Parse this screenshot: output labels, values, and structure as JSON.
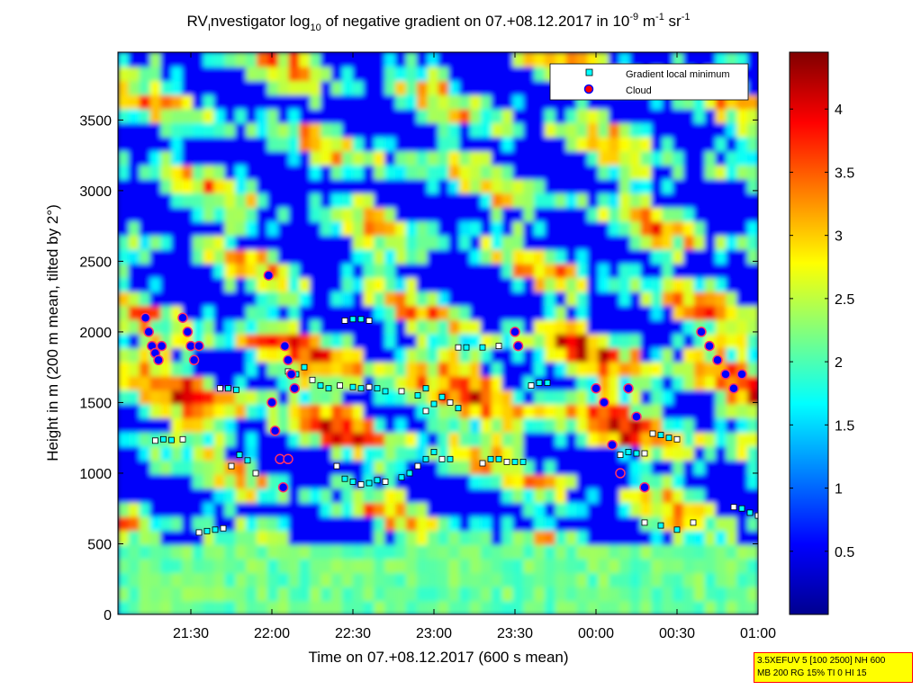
{
  "chart_data": {
    "type": "heatmap",
    "title": {
      "main": "RV",
      "main_sub": "I",
      "part1": "nvestigator log",
      "part1_sub": "10",
      "part2": " of negative gradient on 07.+08.12.2017 in 10",
      "unit1_sup": "-9",
      "unit2": " m",
      "unit2_sup": "-1",
      "unit3": " sr",
      "unit3_sup": "-1"
    },
    "xlabel": "Time on 07.+08.12.2017 (600 s mean)",
    "ylabel": "Height in m (200 m mean, tilted by 2°)",
    "x_ticks": [
      "21:30",
      "22:00",
      "22:30",
      "23:00",
      "23:30",
      "00:00",
      "00:30",
      "01:00"
    ],
    "x_tick_hours": [
      21.5,
      22.0,
      22.5,
      23.0,
      23.5,
      24.0,
      24.5,
      25.0
    ],
    "xlim_hours": [
      21.05,
      25.0
    ],
    "y_ticks": [
      0,
      500,
      1000,
      1500,
      2000,
      2500,
      3000,
      3500
    ],
    "ylim": [
      0,
      3980
    ],
    "colorbar": {
      "ticks": [
        "0.5",
        "1",
        "1.5",
        "2",
        "2.5",
        "3",
        "3.5",
        "4"
      ],
      "tick_values": [
        0.5,
        1,
        1.5,
        2,
        2.5,
        3,
        3.5,
        4
      ],
      "range": [
        0,
        4.45
      ],
      "colormap": "jet"
    },
    "legend": {
      "placement": "top-right",
      "entries": [
        {
          "label": "Gradient local minimum",
          "marker": "square",
          "color": "#00ffff"
        },
        {
          "label": "Cloud",
          "marker": "circle",
          "color": "#ff0000",
          "edge": "#0000ff"
        }
      ]
    },
    "gradient_minimum_series": [
      {
        "time_hours": [
          21.28,
          21.33,
          21.38,
          21.45
        ],
        "height_m": [
          1230,
          1240,
          1235,
          1240
        ]
      },
      {
        "time_hours": [
          21.68,
          21.73,
          21.78
        ],
        "height_m": [
          1600,
          1600,
          1590
        ]
      },
      {
        "time_hours": [
          21.55,
          21.6,
          21.65,
          21.7
        ],
        "height_m": [
          580,
          590,
          600,
          610
        ]
      },
      {
        "time_hours": [
          21.75,
          21.8,
          21.85,
          21.9
        ],
        "height_m": [
          1050,
          1130,
          1090,
          1000
        ]
      },
      {
        "time_hours": [
          22.1,
          22.15,
          22.2,
          22.25,
          22.3,
          22.35,
          22.42,
          22.5,
          22.55,
          22.6,
          22.65,
          22.7,
          22.8,
          22.9,
          22.95
        ],
        "height_m": [
          1720,
          1700,
          1750,
          1660,
          1620,
          1600,
          1620,
          1610,
          1600,
          1610,
          1600,
          1580,
          1580,
          1550,
          1600
        ]
      },
      {
        "time_hours": [
          22.45,
          22.5,
          22.55,
          22.6
        ],
        "height_m": [
          2080,
          2090,
          2090,
          2080
        ]
      },
      {
        "time_hours": [
          22.4,
          22.45,
          22.5,
          22.55,
          22.6,
          22.65,
          22.7,
          22.8,
          22.85
        ],
        "height_m": [
          1050,
          960,
          940,
          920,
          930,
          950,
          940,
          970,
          1000
        ]
      },
      {
        "time_hours": [
          22.9,
          22.95,
          23.0,
          23.05,
          23.1
        ],
        "height_m": [
          1050,
          1100,
          1150,
          1100,
          1100
        ]
      },
      {
        "time_hours": [
          22.95,
          23.0,
          23.05,
          23.1,
          23.15
        ],
        "height_m": [
          1440,
          1490,
          1540,
          1500,
          1460
        ]
      },
      {
        "time_hours": [
          23.15,
          23.2,
          23.3,
          23.4
        ],
        "height_m": [
          1890,
          1890,
          1890,
          1900
        ]
      },
      {
        "time_hours": [
          23.3,
          23.35,
          23.4,
          23.45,
          23.5,
          23.55
        ],
        "height_m": [
          1070,
          1100,
          1100,
          1080,
          1080,
          1080
        ]
      },
      {
        "time_hours": [
          23.6,
          23.65,
          23.7
        ],
        "height_m": [
          1620,
          1640,
          1640
        ]
      },
      {
        "time_hours": [
          24.15,
          24.2,
          24.25,
          24.3
        ],
        "height_m": [
          1130,
          1150,
          1140,
          1140
        ]
      },
      {
        "time_hours": [
          24.35,
          24.4,
          24.45,
          24.5
        ],
        "height_m": [
          1280,
          1270,
          1250,
          1240
        ]
      },
      {
        "time_hours": [
          24.3,
          24.4,
          24.5,
          24.6
        ],
        "height_m": [
          650,
          630,
          600,
          650
        ]
      },
      {
        "time_hours": [
          24.85,
          24.9,
          24.95,
          25.0
        ],
        "height_m": [
          760,
          750,
          720,
          700
        ]
      }
    ],
    "cloud_series": [
      {
        "time_hours": [
          21.22,
          21.24,
          21.26,
          21.28,
          21.3,
          21.32
        ],
        "height_m": [
          2100,
          2000,
          1900,
          1850,
          1800,
          1900
        ]
      },
      {
        "time_hours": [
          21.45,
          21.48,
          21.5,
          21.52,
          21.55
        ],
        "height_m": [
          2100,
          2000,
          1900,
          1800,
          1900
        ]
      },
      {
        "time_hours": [
          21.98,
          22.0,
          22.02,
          22.05,
          22.07,
          22.1
        ],
        "height_m": [
          2400,
          1500,
          1300,
          1100,
          900,
          1100
        ]
      },
      {
        "time_hours": [
          22.08,
          22.1,
          22.12,
          22.14
        ],
        "height_m": [
          1900,
          1800,
          1700,
          1600
        ]
      },
      {
        "time_hours": [
          23.5,
          23.52
        ],
        "height_m": [
          2000,
          1900
        ]
      },
      {
        "time_hours": [
          24.0,
          24.05,
          24.1,
          24.15,
          24.2,
          24.25,
          24.3
        ],
        "height_m": [
          1600,
          1500,
          1200,
          1000,
          1600,
          1400,
          900
        ]
      },
      {
        "time_hours": [
          24.65,
          24.7,
          24.75,
          24.8,
          24.85,
          24.9
        ],
        "height_m": [
          2000,
          1900,
          1800,
          1700,
          1600,
          1700
        ]
      }
    ]
  },
  "annotation_box": {
    "line1": "3.5XEFUV 5 [100 2500] NH 600",
    "line2": "MB 200 RG 15% TI 0 HI 15"
  }
}
